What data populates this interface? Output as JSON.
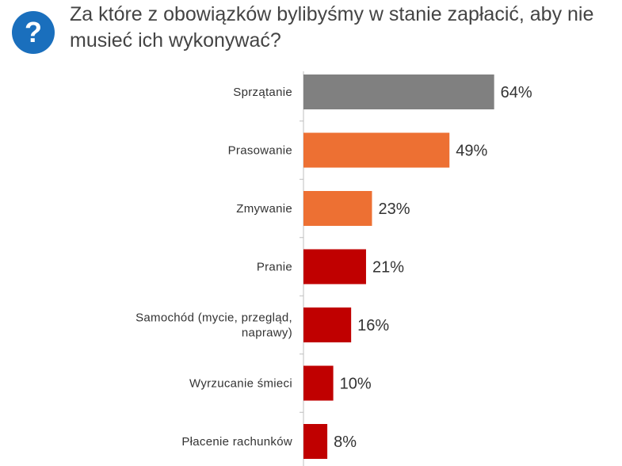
{
  "header": {
    "icon": "question-mark-icon",
    "icon_color": "#1a6fbd",
    "title": "Za które z obowiązków bylibyśmy w stanie zapłacić, aby nie musieć ich wykonywać?"
  },
  "chart_data": {
    "type": "bar",
    "orientation": "horizontal",
    "title": "Za które z obowiązków bylibyśmy w stanie zapłacić, aby nie musieć ich wykonywać?",
    "categories": [
      "Sprzątanie",
      "Prasowanie",
      "Zmywanie",
      "Pranie",
      "Samochód (mycie, przegląd, naprawy)",
      "Wyrzucanie śmieci",
      "Płacenie rachunków"
    ],
    "category_lines": [
      [
        "Sprzątanie"
      ],
      [
        "Prasowanie"
      ],
      [
        "Zmywanie"
      ],
      [
        "Pranie"
      ],
      [
        "Samochód (mycie, przegląd,",
        "naprawy)"
      ],
      [
        "Wyrzucanie śmieci"
      ],
      [
        "Płacenie rachunków"
      ]
    ],
    "values": [
      64,
      49,
      23,
      21,
      16,
      10,
      8
    ],
    "value_labels": [
      "64%",
      "49%",
      "23%",
      "21%",
      "16%",
      "10%",
      "8%"
    ],
    "colors": [
      "#808080",
      "#ed7033",
      "#ed7033",
      "#c00000",
      "#c00000",
      "#c00000",
      "#c00000"
    ],
    "unit": "%",
    "xlabel": "",
    "ylabel": "",
    "grid": false,
    "legend": "none"
  }
}
